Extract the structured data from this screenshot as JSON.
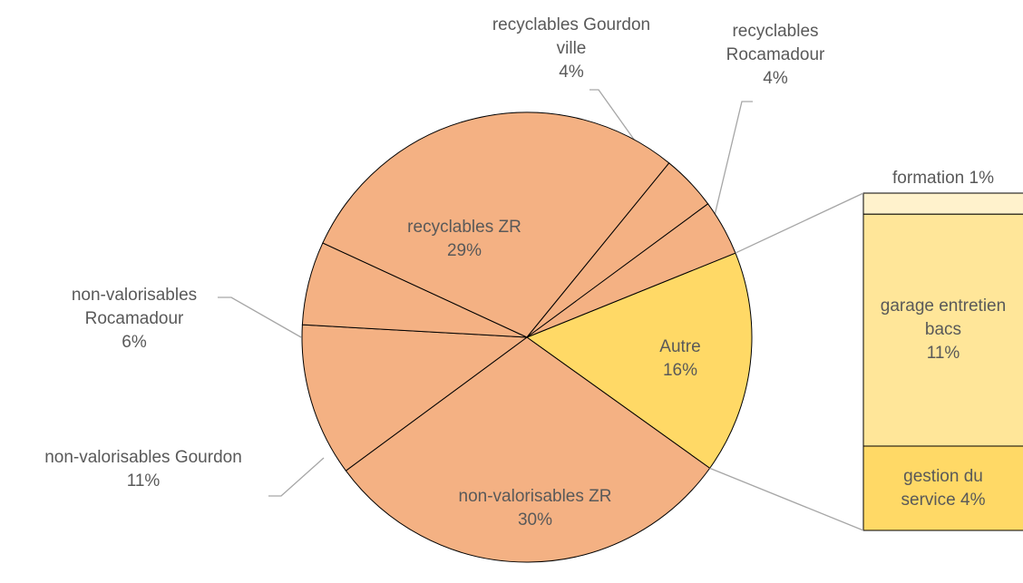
{
  "chart_data": {
    "type": "pie",
    "categories": [
      "Autre",
      "non-valorisables ZR",
      "non-valorisables Gourdon",
      "non-valorisables Rocamadour",
      "recyclables ZR",
      "recyclables Gourdon ville",
      "recyclables Rocamadour"
    ],
    "values": [
      16,
      30,
      11,
      6,
      29,
      4,
      4
    ],
    "value_labels": [
      "16%",
      "30%",
      "11%",
      "6%",
      "29%",
      "4%",
      "4%"
    ],
    "colors": [
      "#ffd966",
      "#f4b183",
      "#f4b183",
      "#f4b183",
      "#f4b183",
      "#f4b183",
      "#f4b183"
    ],
    "bar_breakdown": {
      "categories": [
        "formation",
        "garage entretien bacs",
        "gestion du service"
      ],
      "values": [
        1,
        11,
        4
      ],
      "value_labels": [
        "1%",
        "11%",
        "4%"
      ],
      "colors": [
        "#fff2cc",
        "#ffe699",
        "#ffd966"
      ]
    }
  }
}
